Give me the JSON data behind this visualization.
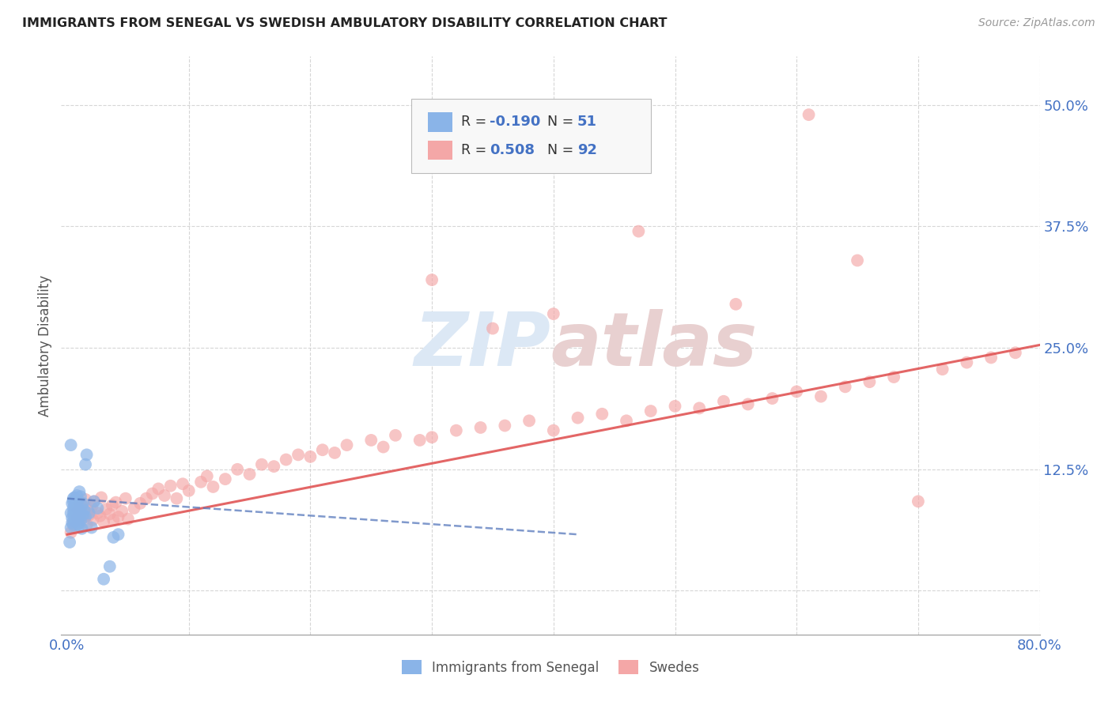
{
  "title": "IMMIGRANTS FROM SENEGAL VS SWEDISH AMBULATORY DISABILITY CORRELATION CHART",
  "source": "Source: ZipAtlas.com",
  "ylabel": "Ambulatory Disability",
  "blue_R": -0.19,
  "blue_N": 51,
  "pink_R": 0.508,
  "pink_N": 92,
  "blue_color": "#8ab4e8",
  "pink_color": "#f4a7a7",
  "blue_line_color": "#5577bb",
  "pink_line_color": "#e05555",
  "background_color": "#ffffff",
  "grid_color": "#cccccc",
  "title_color": "#222222",
  "axis_label_color": "#4472c4",
  "watermark_color": "#dce8f5",
  "xlim": [
    -0.005,
    0.8
  ],
  "ylim": [
    -0.045,
    0.55
  ],
  "ytick_vals": [
    0.0,
    0.125,
    0.25,
    0.375,
    0.5
  ],
  "ytick_labels": [
    "",
    "12.5%",
    "25.0%",
    "37.5%",
    "50.0%"
  ],
  "xtick_vals": [
    0.0,
    0.1,
    0.2,
    0.3,
    0.4,
    0.5,
    0.6,
    0.7,
    0.8
  ],
  "xtick_labels": [
    "0.0%",
    "",
    "",
    "",
    "",
    "",
    "",
    "",
    "80.0%"
  ],
  "blue_x": [
    0.002,
    0.003,
    0.003,
    0.004,
    0.004,
    0.004,
    0.005,
    0.005,
    0.005,
    0.005,
    0.005,
    0.006,
    0.006,
    0.006,
    0.006,
    0.006,
    0.006,
    0.007,
    0.007,
    0.007,
    0.007,
    0.007,
    0.008,
    0.008,
    0.008,
    0.008,
    0.009,
    0.009,
    0.009,
    0.01,
    0.01,
    0.01,
    0.011,
    0.011,
    0.012,
    0.012,
    0.013,
    0.013,
    0.014,
    0.015,
    0.015,
    0.016,
    0.018,
    0.02,
    0.022,
    0.025,
    0.03,
    0.035,
    0.038,
    0.042,
    0.003
  ],
  "blue_y": [
    0.05,
    0.065,
    0.08,
    0.07,
    0.09,
    0.075,
    0.085,
    0.095,
    0.08,
    0.068,
    0.092,
    0.088,
    0.078,
    0.082,
    0.074,
    0.096,
    0.072,
    0.086,
    0.091,
    0.076,
    0.083,
    0.094,
    0.079,
    0.087,
    0.073,
    0.098,
    0.069,
    0.093,
    0.084,
    0.077,
    0.102,
    0.067,
    0.097,
    0.071,
    0.088,
    0.064,
    0.09,
    0.078,
    0.083,
    0.076,
    0.13,
    0.14,
    0.08,
    0.065,
    0.092,
    0.085,
    0.012,
    0.025,
    0.055,
    0.058,
    0.15
  ],
  "pink_x": [
    0.003,
    0.005,
    0.006,
    0.007,
    0.008,
    0.008,
    0.009,
    0.01,
    0.01,
    0.011,
    0.012,
    0.013,
    0.015,
    0.016,
    0.017,
    0.018,
    0.02,
    0.021,
    0.022,
    0.025,
    0.027,
    0.028,
    0.03,
    0.032,
    0.035,
    0.037,
    0.038,
    0.04,
    0.042,
    0.045,
    0.048,
    0.05,
    0.055,
    0.06,
    0.065,
    0.07,
    0.075,
    0.08,
    0.085,
    0.09,
    0.095,
    0.1,
    0.11,
    0.115,
    0.12,
    0.13,
    0.14,
    0.15,
    0.16,
    0.17,
    0.18,
    0.19,
    0.2,
    0.21,
    0.22,
    0.23,
    0.25,
    0.26,
    0.27,
    0.29,
    0.3,
    0.32,
    0.34,
    0.36,
    0.38,
    0.4,
    0.42,
    0.44,
    0.46,
    0.48,
    0.5,
    0.52,
    0.54,
    0.56,
    0.58,
    0.6,
    0.62,
    0.64,
    0.66,
    0.68,
    0.7,
    0.72,
    0.74,
    0.76,
    0.78,
    0.61,
    0.47,
    0.65,
    0.55,
    0.3,
    0.35,
    0.4
  ],
  "pink_y": [
    0.06,
    0.07,
    0.065,
    0.08,
    0.075,
    0.085,
    0.078,
    0.072,
    0.09,
    0.082,
    0.088,
    0.076,
    0.094,
    0.068,
    0.083,
    0.078,
    0.086,
    0.073,
    0.092,
    0.08,
    0.077,
    0.096,
    0.071,
    0.084,
    0.079,
    0.088,
    0.073,
    0.091,
    0.076,
    0.082,
    0.095,
    0.074,
    0.085,
    0.09,
    0.095,
    0.1,
    0.105,
    0.098,
    0.108,
    0.095,
    0.11,
    0.103,
    0.112,
    0.118,
    0.107,
    0.115,
    0.125,
    0.12,
    0.13,
    0.128,
    0.135,
    0.14,
    0.138,
    0.145,
    0.142,
    0.15,
    0.155,
    0.148,
    0.16,
    0.155,
    0.158,
    0.165,
    0.168,
    0.17,
    0.175,
    0.165,
    0.178,
    0.182,
    0.175,
    0.185,
    0.19,
    0.188,
    0.195,
    0.192,
    0.198,
    0.205,
    0.2,
    0.21,
    0.215,
    0.22,
    0.092,
    0.228,
    0.235,
    0.24,
    0.245,
    0.49,
    0.37,
    0.34,
    0.295,
    0.32,
    0.27,
    0.285
  ],
  "pink_line_x0": 0.0,
  "pink_line_x1": 0.8,
  "pink_line_y0": 0.058,
  "pink_line_y1": 0.253,
  "blue_line_x0": 0.0,
  "blue_line_x1": 0.42,
  "blue_line_y0": 0.095,
  "blue_line_y1": 0.058
}
